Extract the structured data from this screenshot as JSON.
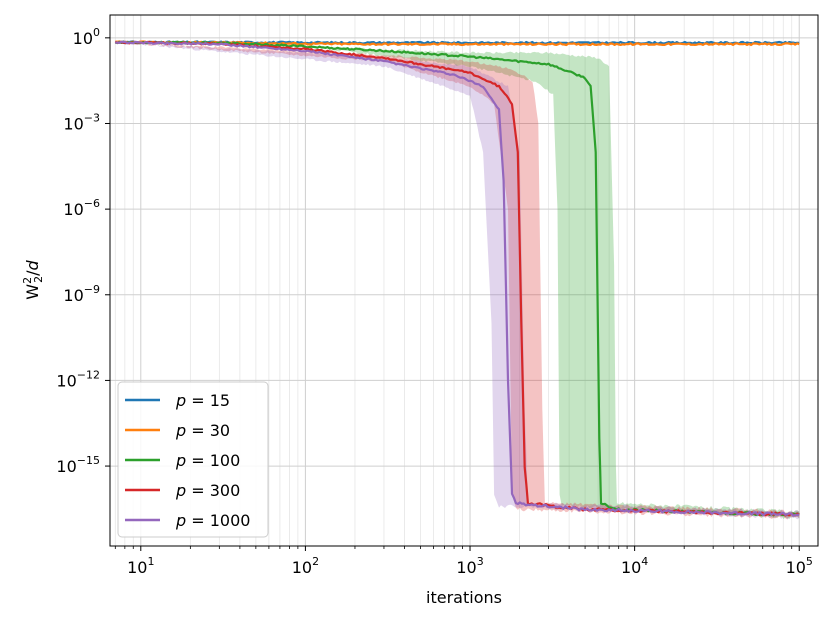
{
  "chart_data": {
    "type": "line",
    "xlabel": "iterations",
    "ylabel_text": "W",
    "ylabel_sup": "2",
    "ylabel_sub": "2",
    "ylabel_tail": "/",
    "ylabel_var": "d",
    "x_scale": "log",
    "y_scale": "log",
    "xlim": [
      6.5,
      130000
    ],
    "ylim_log10": [
      -17.8,
      0.8
    ],
    "grid": true,
    "legend_position": "lower-left",
    "x_ticks": [
      {
        "base": "10",
        "exp": "1",
        "value": 10
      },
      {
        "base": "10",
        "exp": "2",
        "value": 100
      },
      {
        "base": "10",
        "exp": "3",
        "value": 1000
      },
      {
        "base": "10",
        "exp": "4",
        "value": 10000
      },
      {
        "base": "10",
        "exp": "5",
        "value": 100000
      }
    ],
    "y_ticks": [
      {
        "base": "10",
        "exp": "0",
        "log": 0
      },
      {
        "base": "10",
        "exp": "−3",
        "log": -3
      },
      {
        "base": "10",
        "exp": "−6",
        "log": -6
      },
      {
        "base": "10",
        "exp": "−9",
        "log": -9
      },
      {
        "base": "10",
        "exp": "−12",
        "log": -12
      },
      {
        "base": "10",
        "exp": "−15",
        "log": -15
      }
    ],
    "series": [
      {
        "name": "p = 15",
        "legend_var": "p",
        "legend_value": "15",
        "color": "#1f77b4",
        "points": [
          [
            7,
            0.7
          ],
          [
            30,
            0.7
          ],
          [
            100,
            0.68
          ],
          [
            1000,
            0.67
          ],
          [
            10000,
            0.67
          ],
          [
            100000,
            0.67
          ]
        ]
      },
      {
        "name": "p = 30",
        "legend_var": "p",
        "legend_value": "30",
        "color": "#ff7f0e",
        "points": [
          [
            7,
            0.7
          ],
          [
            30,
            0.68
          ],
          [
            100,
            0.62
          ],
          [
            300,
            0.6
          ],
          [
            1000,
            0.6
          ],
          [
            10000,
            0.6
          ],
          [
            100000,
            0.6
          ]
        ]
      },
      {
        "name": "p = 100",
        "legend_var": "p",
        "legend_value": "100",
        "color": "#2ca02c",
        "points": [
          [
            7,
            0.7
          ],
          [
            30,
            0.66
          ],
          [
            100,
            0.5
          ],
          [
            300,
            0.35
          ],
          [
            1000,
            0.22
          ],
          [
            3000,
            0.12
          ],
          [
            5000,
            0.04
          ],
          [
            5400,
            0.02
          ],
          [
            5800,
            0.0001
          ],
          [
            5950,
            1e-09
          ],
          [
            6100,
            1e-14
          ],
          [
            6250,
            5e-17
          ],
          [
            8000,
            3e-17
          ],
          [
            20000,
            2.5e-17
          ],
          [
            100000,
            2e-17
          ]
        ],
        "band_upper": [
          [
            7,
            0.7
          ],
          [
            100,
            0.5
          ],
          [
            1000,
            0.3
          ],
          [
            3000,
            0.3
          ],
          [
            6000,
            0.2
          ],
          [
            7000,
            0.1
          ],
          [
            7500,
            1e-08
          ],
          [
            7700,
            1e-15
          ],
          [
            7800,
            5e-17
          ],
          [
            100000,
            2.5e-17
          ]
        ],
        "band_lower": [
          [
            7,
            0.7
          ],
          [
            100,
            0.5
          ],
          [
            1000,
            0.1
          ],
          [
            2500,
            0.03
          ],
          [
            3200,
            0.01
          ],
          [
            3400,
            1e-06
          ],
          [
            3500,
            1e-16
          ],
          [
            3600,
            4e-17
          ],
          [
            100000,
            1.5e-17
          ]
        ]
      },
      {
        "name": "p = 300",
        "legend_var": "p",
        "legend_value": "300",
        "color": "#d62728",
        "points": [
          [
            7,
            0.7
          ],
          [
            30,
            0.62
          ],
          [
            100,
            0.4
          ],
          [
            300,
            0.2
          ],
          [
            1000,
            0.06
          ],
          [
            1500,
            0.02
          ],
          [
            1800,
            0.005
          ],
          [
            1950,
            0.0001
          ],
          [
            2050,
            1e-10
          ],
          [
            2150,
            1e-15
          ],
          [
            2250,
            5e-17
          ],
          [
            5000,
            3e-17
          ],
          [
            20000,
            2.5e-17
          ],
          [
            100000,
            2e-17
          ]
        ],
        "band_upper": [
          [
            7,
            0.7
          ],
          [
            300,
            0.25
          ],
          [
            1000,
            0.15
          ],
          [
            1800,
            0.08
          ],
          [
            2400,
            0.03
          ],
          [
            2600,
            0.001
          ],
          [
            2750,
            1e-13
          ],
          [
            2850,
            5e-17
          ],
          [
            100000,
            2.5e-17
          ]
        ],
        "band_lower": [
          [
            7,
            0.7
          ],
          [
            300,
            0.15
          ],
          [
            1000,
            0.02
          ],
          [
            1400,
            0.005
          ],
          [
            1700,
            1e-06
          ],
          [
            1800,
            1e-16
          ],
          [
            1900,
            3e-17
          ],
          [
            100000,
            1.5e-17
          ]
        ]
      },
      {
        "name": "p = 1000",
        "legend_var": "p",
        "legend_value": "1000",
        "color": "#9467bd",
        "points": [
          [
            7,
            0.7
          ],
          [
            30,
            0.6
          ],
          [
            100,
            0.35
          ],
          [
            300,
            0.15
          ],
          [
            800,
            0.05
          ],
          [
            1200,
            0.02
          ],
          [
            1500,
            0.003
          ],
          [
            1600,
            1e-05
          ],
          [
            1700,
            1e-12
          ],
          [
            1800,
            1e-16
          ],
          [
            1900,
            5e-17
          ],
          [
            5000,
            3e-17
          ],
          [
            20000,
            2.5e-17
          ],
          [
            100000,
            2e-17
          ]
        ],
        "band_upper": [
          [
            7,
            0.7
          ],
          [
            300,
            0.2
          ],
          [
            1000,
            0.1
          ],
          [
            1700,
            0.02
          ],
          [
            2000,
            0.0001
          ],
          [
            2150,
            1e-13
          ],
          [
            2250,
            5e-17
          ],
          [
            100000,
            2.5e-17
          ]
        ],
        "band_lower": [
          [
            7,
            0.7
          ],
          [
            300,
            0.1
          ],
          [
            1000,
            0.01
          ],
          [
            1200,
            0.0001
          ],
          [
            1350,
            1e-10
          ],
          [
            1400,
            1e-16
          ],
          [
            1500,
            4e-17
          ],
          [
            100000,
            1.5e-17
          ]
        ]
      }
    ]
  }
}
